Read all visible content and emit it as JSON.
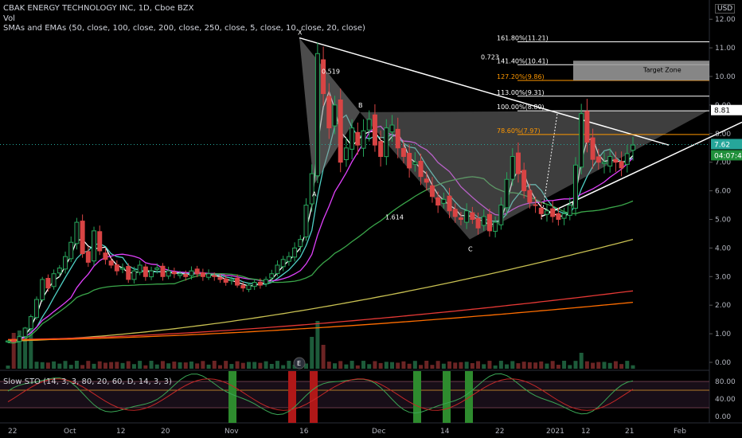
{
  "header": {
    "symbol_line": "CBAK ENERGY TECHNOLOGY INC, 1D, Cboe BZX",
    "vol_label": "Vol",
    "ma_label": "SMAs and EMAs (50, close, 100, close, 200, close, 250, close, 5, close, 10, close, 20, close)",
    "currency": "USD"
  },
  "stoch": {
    "label": "Slow STO (14, 3, 3, 80, 20, 60, D, 14, 3, 3)",
    "ticks": [
      "80.00",
      "40.00",
      "0.00"
    ]
  },
  "price_axis": {
    "ticks": [
      "12.00",
      "11.00",
      "10.00",
      "9.00",
      "8.00",
      "7.00",
      "6.00",
      "5.00",
      "4.00",
      "3.00",
      "2.00",
      "1.00",
      "0.00"
    ],
    "last_price": "7.62",
    "level_tag": "8.81",
    "time_tag": "04:07:43"
  },
  "time_axis": [
    "22",
    "Oct",
    "12",
    "20",
    "Nov",
    "16",
    "Dec",
    "14",
    "22",
    "2021",
    "12",
    "21",
    "Feb"
  ],
  "pattern": {
    "points": [
      "X",
      "A",
      "B",
      "C"
    ],
    "ratios": [
      "0.519",
      "1.614",
      "0.723"
    ],
    "fib_levels": [
      "161.80%(11.21)",
      "141.40%(10.41)",
      "127.20%(9.86)",
      "113.00%(9.31)",
      "100.00%(8.80)",
      "78.60%(7.97)"
    ],
    "target_zone": "Target Zone",
    "e_marker": "E"
  },
  "chart_data": {
    "type": "candlestick",
    "title": "CBAK ENERGY TECHNOLOGY INC, 1D, Cboe BZX",
    "ylim": [
      0,
      12.5
    ],
    "y_unit": "USD",
    "close": [
      0.75,
      0.72,
      0.9,
      1.2,
      1.6,
      2.2,
      2.9,
      2.6,
      3.1,
      3.3,
      3.7,
      4.2,
      4.9,
      3.8,
      3.5,
      4.6,
      3.9,
      3.6,
      3.4,
      3.2,
      3.3,
      2.9,
      3.2,
      3.4,
      3.0,
      3.2,
      3.3,
      3.0,
      3.2,
      3.1,
      3.1,
      3.0,
      3.2,
      3.1,
      3.0,
      3.1,
      3.0,
      2.9,
      2.8,
      2.9,
      2.7,
      2.6,
      2.7,
      2.8,
      2.7,
      2.9,
      3.1,
      3.4,
      3.6,
      3.7,
      4.0,
      4.3,
      5.5,
      6.6,
      10.8,
      9.4,
      8.2,
      9.0,
      7.0,
      7.5,
      8.2,
      7.6,
      8.1,
      8.5,
      7.6,
      7.2,
      8.2,
      8.3,
      7.5,
      7.2,
      6.8,
      7.0,
      6.5,
      6.3,
      5.8,
      5.5,
      5.7,
      5.3,
      5.1,
      5.0,
      5.3,
      5.0,
      4.7,
      5.1,
      4.6,
      4.9,
      5.5,
      6.4,
      7.2,
      6.6,
      6.0,
      5.6,
      5.5,
      5.2,
      5.3,
      5.1,
      5.0,
      5.2,
      5.5,
      6.9,
      8.7,
      7.7,
      7.1,
      7.0,
      7.0,
      7.2,
      7.0,
      6.8,
      7.3,
      7.6
    ],
    "sma_50_end": 6.2,
    "sma_100_end": 4.3,
    "sma_200_end": 2.5,
    "sma_250_end": 2.1,
    "volume_max_day": 54,
    "stoch_overbought": 80,
    "stoch_oversold": 20,
    "stoch_mid": 60,
    "fib_targets": [
      11.21,
      10.41,
      9.86,
      9.31,
      8.8,
      7.97
    ],
    "target_zone_range": [
      9.86,
      10.55
    ],
    "pattern_points": {
      "X": 11.35,
      "A": 6.2,
      "B": 8.75,
      "C": 4.3
    }
  }
}
